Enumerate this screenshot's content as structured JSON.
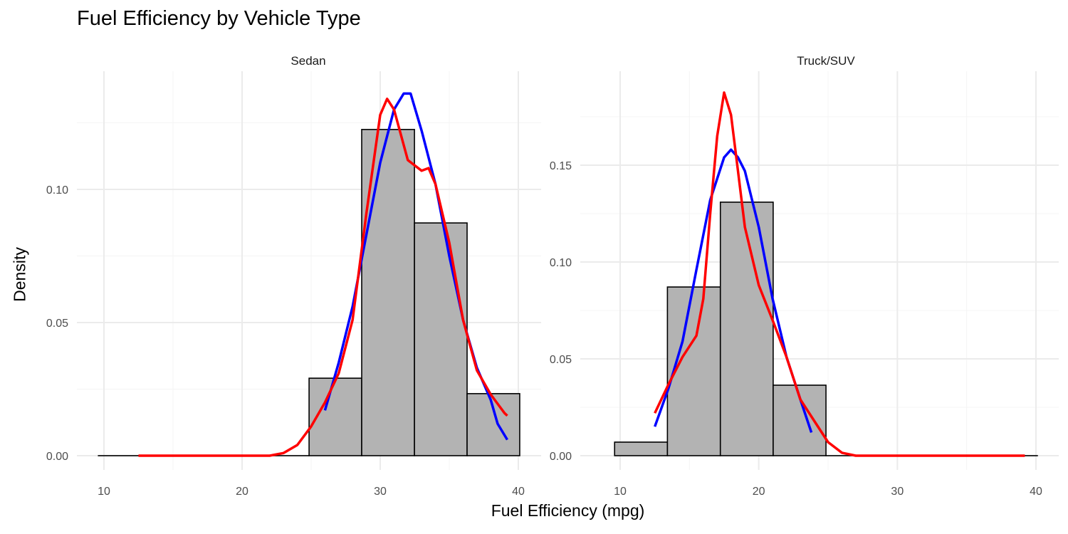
{
  "chart_data": {
    "type": "histogram+density",
    "title": "Fuel Efficiency by Vehicle Type",
    "xlabel": "Fuel Efficiency (mpg)",
    "ylabel": "Density",
    "grid": true,
    "bin_edges": [
      9.6,
      13.41,
      17.23,
      21.04,
      24.85,
      28.66,
      32.48,
      36.29,
      40.1
    ],
    "colors": {
      "bar_fill": "#b3b3b3",
      "bar_stroke": "#000000",
      "kde": "#ff0000",
      "second_curve": "#0000ff",
      "grid": "#ebebeb"
    },
    "panels": [
      {
        "label": "Sedan",
        "xlim": [
          9.6,
          40.1
        ],
        "ylim": [
          0,
          0.145
        ],
        "xticks": [
          "10",
          "20",
          "30",
          "40"
        ],
        "yticks": [
          "0.00",
          "0.05",
          "0.10"
        ],
        "yticks_values": [
          0,
          0.05,
          0.1
        ],
        "bar_values": [
          0,
          0,
          0,
          0,
          0.0291,
          0.1225,
          0.0874,
          0.0233
        ],
        "red_curve": {
          "x": [
            12.5,
            20,
            22,
            23,
            24,
            25,
            26,
            27,
            28,
            29,
            30,
            30.5,
            31,
            32,
            33,
            33.5,
            34,
            35,
            36,
            37,
            38,
            39,
            39.2
          ],
          "y": [
            0,
            0,
            0,
            0.001,
            0.004,
            0.011,
            0.02,
            0.031,
            0.051,
            0.091,
            0.128,
            0.134,
            0.13,
            0.111,
            0.107,
            0.108,
            0.102,
            0.08,
            0.051,
            0.032,
            0.023,
            0.016,
            0.015
          ]
        },
        "blue_curve": {
          "x": [
            26,
            27,
            28,
            29,
            30,
            31,
            31.7,
            32.2,
            33,
            34,
            35,
            36,
            37,
            38,
            38.5,
            39.2
          ],
          "y": [
            0.017,
            0.035,
            0.056,
            0.083,
            0.11,
            0.13,
            0.136,
            0.136,
            0.122,
            0.102,
            0.075,
            0.051,
            0.033,
            0.021,
            0.012,
            0.006
          ]
        }
      },
      {
        "label": "Truck/SUV",
        "xlim": [
          9.6,
          40.1
        ],
        "ylim": [
          0,
          0.195
        ],
        "xticks": [
          "10",
          "20",
          "30",
          "40"
        ],
        "yticks": [
          "0.00",
          "0.05",
          "0.10",
          "0.15"
        ],
        "yticks_values": [
          0,
          0.05,
          0.1,
          0.15
        ],
        "bar_values": [
          0.007,
          0.0871,
          0.1309,
          0.0364,
          0,
          0,
          0,
          0
        ],
        "red_curve": {
          "x": [
            12.5,
            13.5,
            14.5,
            15.5,
            16,
            16.5,
            17,
            17.5,
            18,
            18.5,
            19,
            20,
            21,
            22,
            23,
            24,
            25,
            26,
            27,
            39.2
          ],
          "y": [
            0.022,
            0.037,
            0.051,
            0.062,
            0.081,
            0.125,
            0.165,
            0.1875,
            0.176,
            0.147,
            0.118,
            0.088,
            0.07,
            0.051,
            0.029,
            0.018,
            0.007,
            0.0015,
            0,
            0
          ]
        },
        "blue_curve": {
          "x": [
            12.5,
            13.5,
            14.5,
            15.5,
            16.5,
            17.5,
            18,
            18.5,
            19,
            20,
            21,
            22,
            23,
            23.8
          ],
          "y": [
            0.015,
            0.035,
            0.059,
            0.096,
            0.132,
            0.154,
            0.158,
            0.154,
            0.147,
            0.118,
            0.081,
            0.051,
            0.029,
            0.012
          ]
        }
      }
    ]
  }
}
